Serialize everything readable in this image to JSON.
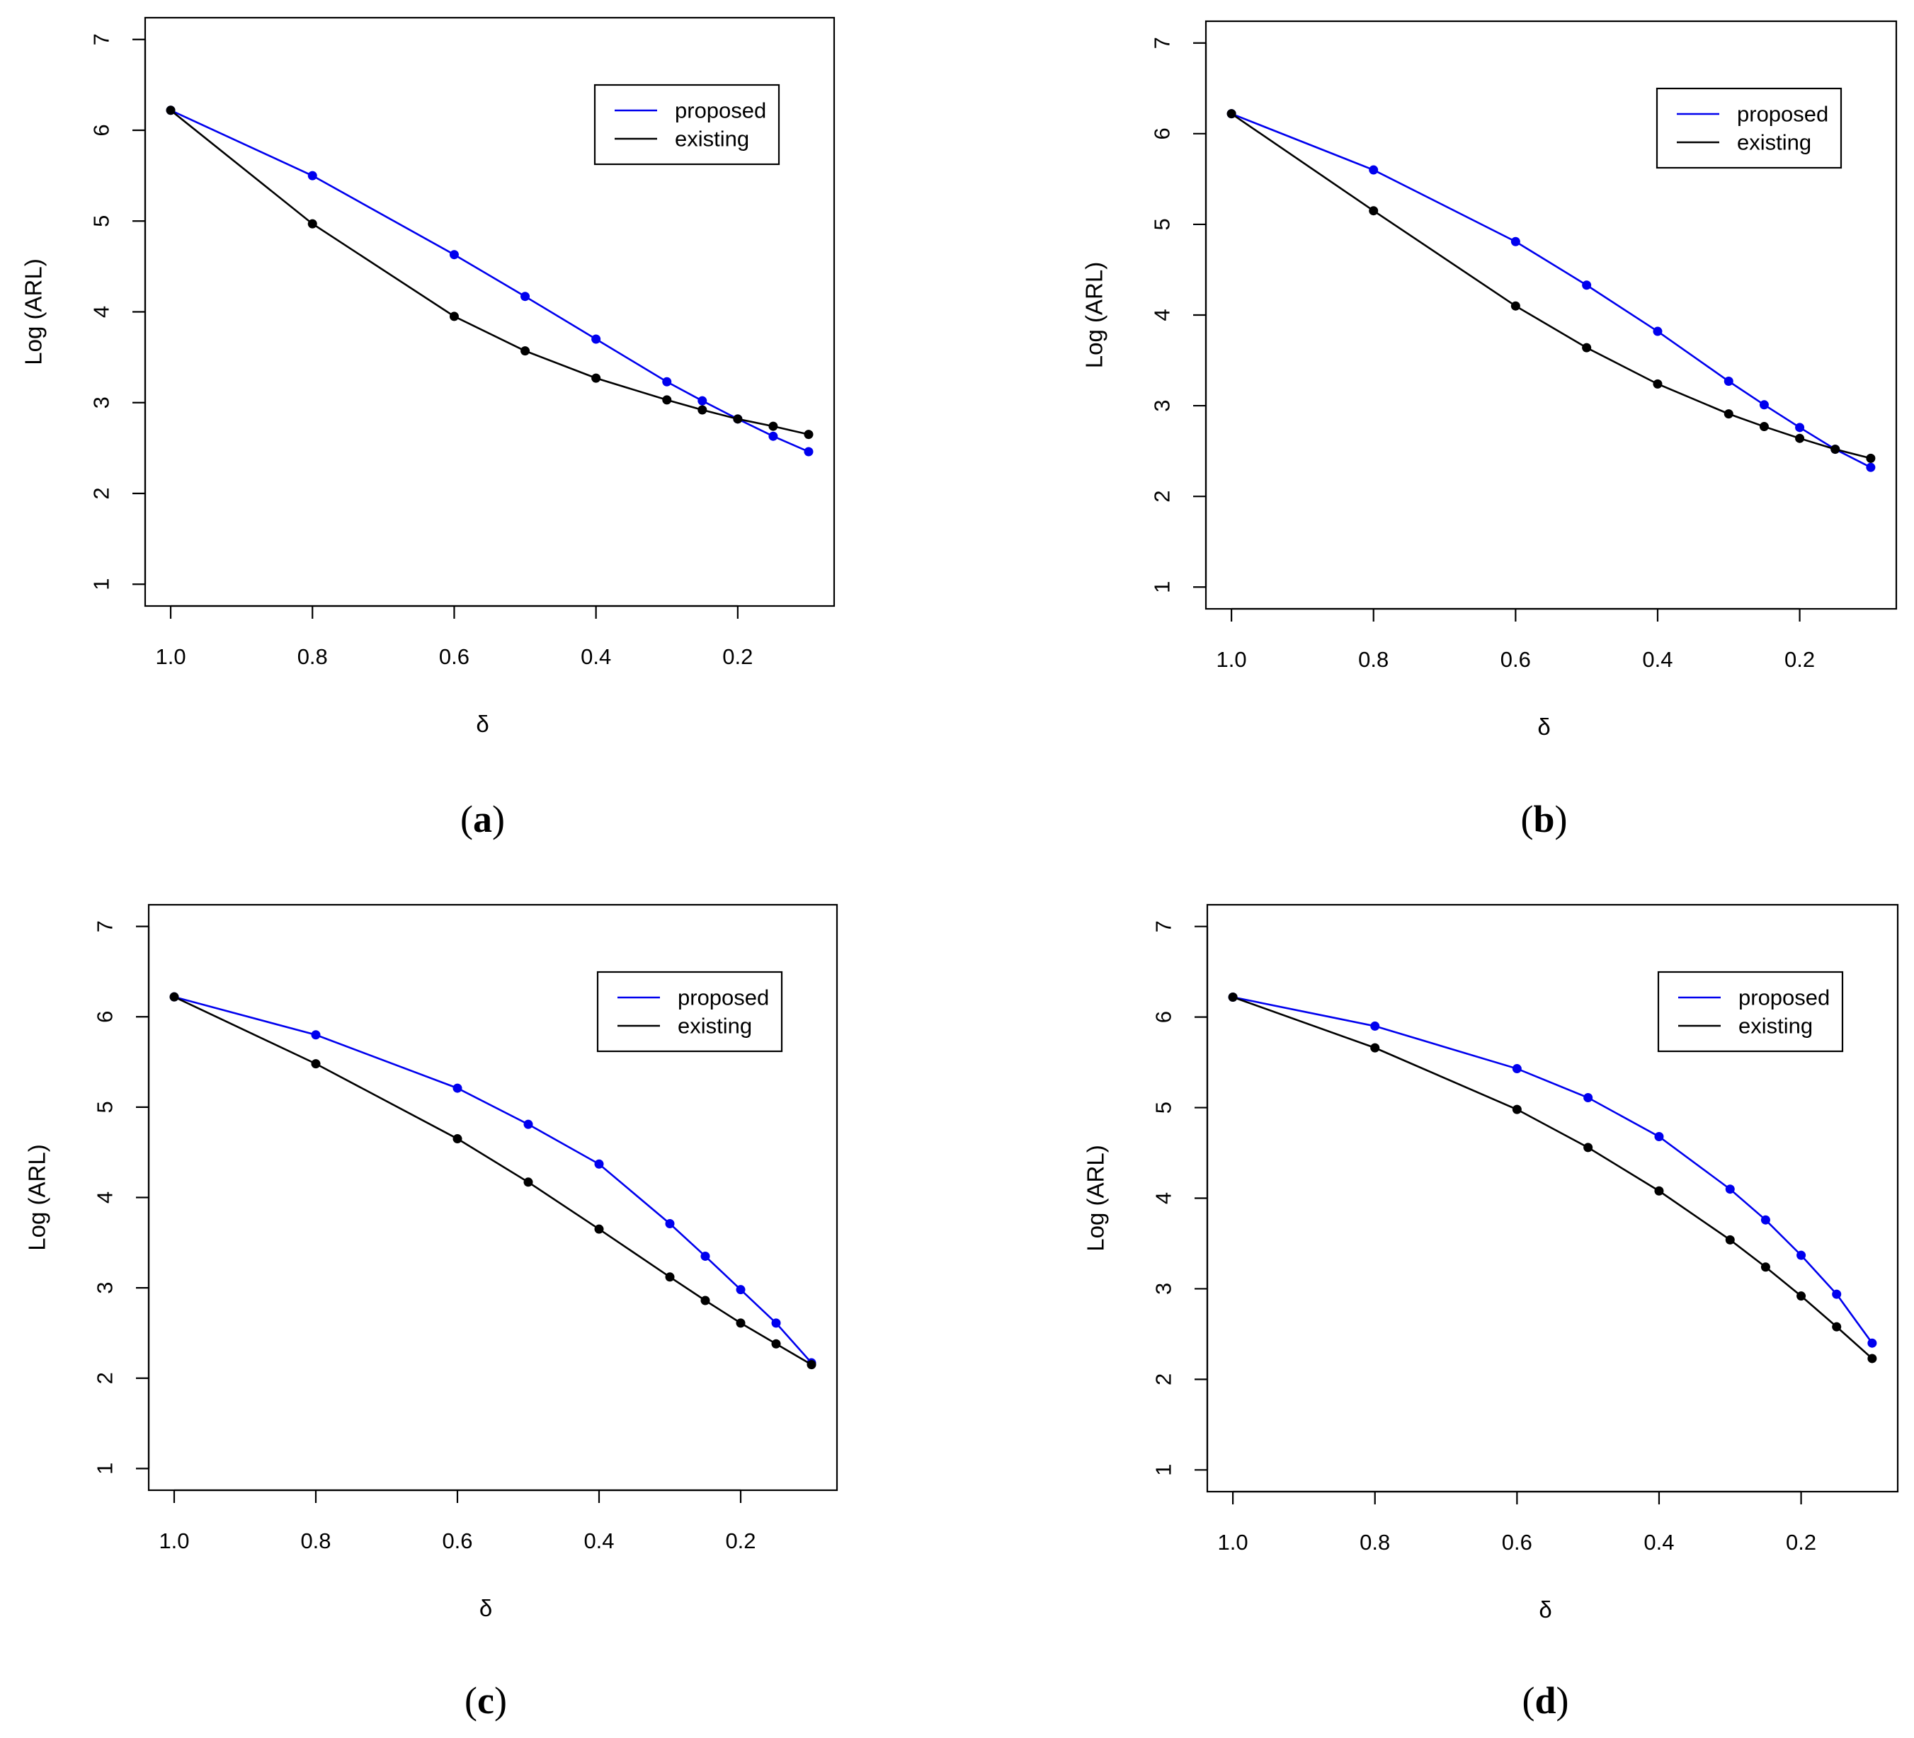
{
  "colors": {
    "proposed": "#0000ee",
    "existing": "#000000"
  },
  "chart_data": [
    {
      "panel": "a",
      "type": "line",
      "xlabel": "δ",
      "ylabel": "Log (ARL)",
      "xlim": [
        1.0,
        0.1
      ],
      "ylim": [
        1,
        7
      ],
      "xticks": [
        1.0,
        0.8,
        0.6,
        0.4,
        0.2
      ],
      "xtick_labels": [
        "1.0",
        "0.8",
        "0.6",
        "0.4",
        "0.2"
      ],
      "yticks": [
        1,
        2,
        3,
        4,
        5,
        6,
        7
      ],
      "ytick_labels": [
        "1",
        "2",
        "3",
        "4",
        "5",
        "6",
        "7"
      ],
      "legend": "top-right",
      "x": [
        1.0,
        0.8,
        0.6,
        0.5,
        0.4,
        0.3,
        0.25,
        0.2,
        0.15,
        0.1
      ],
      "series": [
        {
          "name": "proposed",
          "values": [
            6.22,
            5.5,
            4.63,
            4.17,
            3.7,
            3.23,
            3.02,
            2.82,
            2.63,
            2.46
          ]
        },
        {
          "name": "existing",
          "values": [
            6.22,
            4.97,
            3.95,
            3.57,
            3.27,
            3.03,
            2.92,
            2.82,
            2.74,
            2.65
          ]
        }
      ],
      "label_open": "(",
      "label_letter": "a",
      "label_close": ")"
    },
    {
      "panel": "b",
      "type": "line",
      "xlabel": "δ",
      "ylabel": "Log (ARL)",
      "xlim": [
        1.0,
        0.1
      ],
      "ylim": [
        1,
        7
      ],
      "xticks": [
        1.0,
        0.8,
        0.6,
        0.4,
        0.2
      ],
      "xtick_labels": [
        "1.0",
        "0.8",
        "0.6",
        "0.4",
        "0.2"
      ],
      "yticks": [
        1,
        2,
        3,
        4,
        5,
        6,
        7
      ],
      "ytick_labels": [
        "1",
        "2",
        "3",
        "4",
        "5",
        "6",
        "7"
      ],
      "legend": "top-right",
      "x": [
        1.0,
        0.8,
        0.6,
        0.5,
        0.4,
        0.3,
        0.25,
        0.2,
        0.15,
        0.1
      ],
      "series": [
        {
          "name": "proposed",
          "values": [
            6.22,
            5.6,
            4.81,
            4.33,
            3.82,
            3.27,
            3.01,
            2.76,
            2.52,
            2.32
          ]
        },
        {
          "name": "existing",
          "values": [
            6.22,
            5.15,
            4.1,
            3.64,
            3.24,
            2.91,
            2.77,
            2.64,
            2.52,
            2.42
          ]
        }
      ],
      "label_open": "(",
      "label_letter": "b",
      "label_close": ")"
    },
    {
      "panel": "c",
      "type": "line",
      "xlabel": "δ",
      "ylabel": "Log (ARL)",
      "xlim": [
        1.0,
        0.1
      ],
      "ylim": [
        1,
        7
      ],
      "xticks": [
        1.0,
        0.8,
        0.6,
        0.4,
        0.2
      ],
      "xtick_labels": [
        "1.0",
        "0.8",
        "0.6",
        "0.4",
        "0.2"
      ],
      "yticks": [
        1,
        2,
        3,
        4,
        5,
        6,
        7
      ],
      "ytick_labels": [
        "1",
        "2",
        "3",
        "4",
        "5",
        "6",
        "7"
      ],
      "legend": "top-right",
      "x": [
        1.0,
        0.8,
        0.6,
        0.5,
        0.4,
        0.3,
        0.25,
        0.2,
        0.15,
        0.1
      ],
      "series": [
        {
          "name": "proposed",
          "values": [
            6.22,
            5.8,
            5.21,
            4.81,
            4.37,
            3.71,
            3.35,
            2.98,
            2.61,
            2.17
          ]
        },
        {
          "name": "existing",
          "values": [
            6.22,
            5.48,
            4.65,
            4.17,
            3.65,
            3.12,
            2.86,
            2.61,
            2.38,
            2.15
          ]
        }
      ],
      "label_open": "(",
      "label_letter": "c",
      "label_close": ")"
    },
    {
      "panel": "d",
      "type": "line",
      "xlabel": "δ",
      "ylabel": "Log (ARL)",
      "xlim": [
        1.0,
        0.1
      ],
      "ylim": [
        1,
        7
      ],
      "xticks": [
        1.0,
        0.8,
        0.6,
        0.4,
        0.2
      ],
      "xtick_labels": [
        "1.0",
        "0.8",
        "0.6",
        "0.4",
        "0.2"
      ],
      "yticks": [
        1,
        2,
        3,
        4,
        5,
        6,
        7
      ],
      "ytick_labels": [
        "1",
        "2",
        "3",
        "4",
        "5",
        "6",
        "7"
      ],
      "legend": "top-right",
      "x": [
        1.0,
        0.8,
        0.6,
        0.5,
        0.4,
        0.3,
        0.25,
        0.2,
        0.15,
        0.1
      ],
      "series": [
        {
          "name": "proposed",
          "values": [
            6.22,
            5.9,
            5.43,
            5.11,
            4.68,
            4.1,
            3.76,
            3.37,
            2.94,
            2.4
          ]
        },
        {
          "name": "existing",
          "values": [
            6.22,
            5.66,
            4.98,
            4.56,
            4.08,
            3.54,
            3.24,
            2.92,
            2.58,
            2.23
          ]
        }
      ],
      "label_open": "(",
      "label_letter": "d",
      "label_close": ")"
    }
  ]
}
